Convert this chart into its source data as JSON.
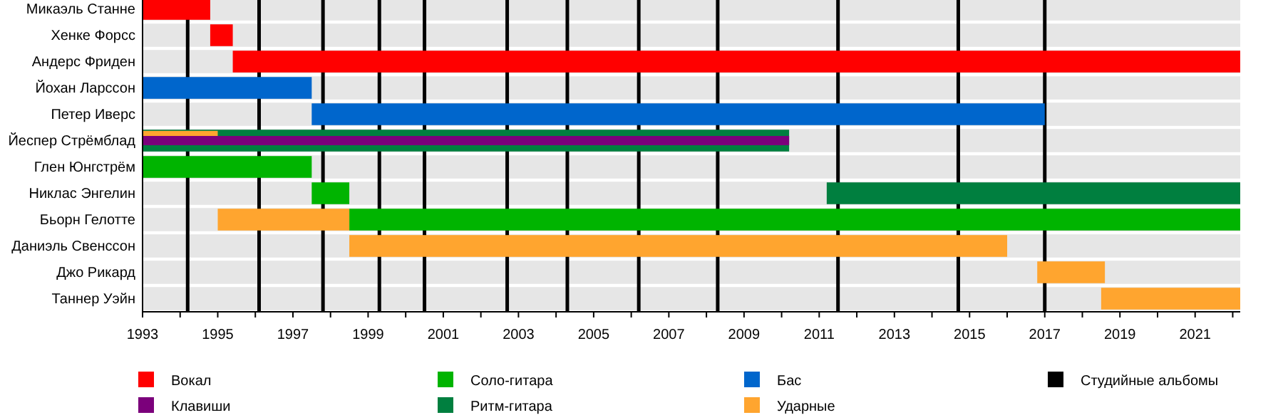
{
  "chart_data": {
    "type": "bar",
    "orientation": "horizontal",
    "legend": "bottom",
    "grid": false,
    "categories": [
      "Микаэль Станне",
      "Хенке Форсс",
      "Андерс Фриден",
      "Йохан Ларссон",
      "Петер Иверс",
      "Йеспер Стрёмблад",
      "Глен Юнгстрём",
      "Никлас Энгелин",
      "Бьорн Гелотте",
      "Даниэль Свенссон",
      "Джо Рикард",
      "Таннер Уэйн"
    ],
    "xlim": [
      1993,
      2022.2
    ],
    "xticks": [
      1993,
      {
        "value": 1994,
        "label": null
      },
      1995,
      {
        "value": 1996,
        "label": null
      },
      1997,
      {
        "value": 1998,
        "label": null
      },
      1999,
      {
        "value": 2000,
        "label": null
      },
      2001,
      {
        "value": 2002,
        "label": null
      },
      2003,
      {
        "value": 2004,
        "label": null
      },
      2005,
      {
        "value": 2006,
        "label": null
      },
      2007,
      {
        "value": 2008,
        "label": null
      },
      2009,
      {
        "value": 2010,
        "label": null
      },
      2011,
      {
        "value": 2012,
        "label": null
      },
      2013,
      {
        "value": 2014,
        "label": null
      },
      2015,
      {
        "value": 2016,
        "label": null
      },
      2017,
      {
        "value": 2018,
        "label": null
      },
      2019,
      {
        "value": 2020,
        "label": null
      },
      2021,
      {
        "value": 2022,
        "label": null
      }
    ],
    "series": [
      {
        "name": "Вокал",
        "color": "#ff0000",
        "base": [
          1993,
          1994.8,
          1995.4,
          null,
          null,
          null,
          null,
          null,
          null,
          null,
          null,
          null
        ],
        "values": [
          1.8,
          0.6,
          26.8,
          null,
          null,
          null,
          null,
          null,
          null,
          null,
          null,
          null
        ]
      },
      {
        "name": "Клавиши",
        "color": "#7b007b",
        "base": [
          null,
          null,
          null,
          null,
          null,
          1993,
          null,
          null,
          null,
          null,
          null,
          null
        ],
        "values": [
          null,
          null,
          null,
          null,
          null,
          17.2,
          null,
          null,
          null,
          null,
          null,
          null
        ]
      },
      {
        "name": "Соло-гитара",
        "color": "#00b400",
        "base": [
          null,
          null,
          null,
          null,
          null,
          null,
          1993,
          1997.5,
          1998.5,
          null,
          null,
          null
        ],
        "values": [
          null,
          null,
          null,
          null,
          null,
          null,
          4.5,
          1.0,
          23.7,
          null,
          null,
          null
        ]
      },
      {
        "name": "Ритм-гитара",
        "color": "#007f3f",
        "base": [
          null,
          null,
          null,
          null,
          null,
          1993,
          null,
          2011.2,
          null,
          null,
          null,
          null
        ],
        "values": [
          null,
          null,
          null,
          null,
          null,
          17.2,
          null,
          11.0,
          null,
          null,
          null,
          null
        ]
      },
      {
        "name": "Бас",
        "color": "#0066cc",
        "base": [
          null,
          null,
          null,
          1993,
          1997.5,
          null,
          null,
          null,
          null,
          null,
          null,
          null
        ],
        "values": [
          null,
          null,
          null,
          4.5,
          19.5,
          null,
          null,
          null,
          null,
          null,
          null,
          null
        ]
      },
      {
        "name": "Ударные",
        "color": "#ffa52f",
        "base": [
          null,
          null,
          null,
          null,
          null,
          1993,
          null,
          null,
          1995.0,
          1998.5,
          2016.8,
          2018.5
        ],
        "values": [
          null,
          null,
          null,
          null,
          null,
          2.0,
          null,
          null,
          3.5,
          17.5,
          1.8,
          3.7
        ]
      }
    ],
    "ref_lines": [
      {
        "axis": "x",
        "value": 1994.2,
        "label": "Студийные альбомы",
        "color": "#000000"
      },
      {
        "axis": "x",
        "value": 1996.1,
        "color": "#000000"
      },
      {
        "axis": "x",
        "value": 1997.8,
        "color": "#000000"
      },
      {
        "axis": "x",
        "value": 1999.3,
        "color": "#000000"
      },
      {
        "axis": "x",
        "value": 2000.5,
        "color": "#000000"
      },
      {
        "axis": "x",
        "value": 2002.7,
        "color": "#000000"
      },
      {
        "axis": "x",
        "value": 2004.3,
        "color": "#000000"
      },
      {
        "axis": "x",
        "value": 2006.2,
        "color": "#000000"
      },
      {
        "axis": "x",
        "value": 2008.3,
        "color": "#000000"
      },
      {
        "axis": "x",
        "value": 2011.5,
        "color": "#000000"
      },
      {
        "axis": "x",
        "value": 2014.7,
        "color": "#000000"
      },
      {
        "axis": "x",
        "value": 2017.0,
        "color": "#000000"
      }
    ]
  }
}
